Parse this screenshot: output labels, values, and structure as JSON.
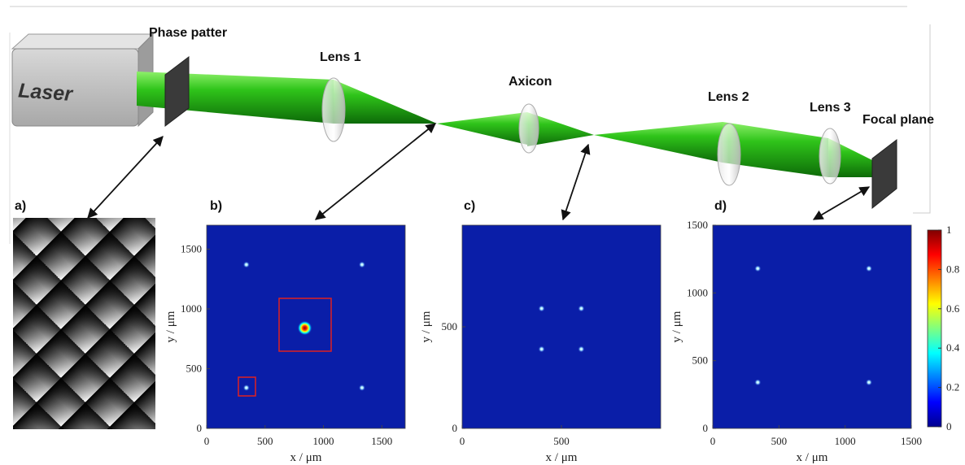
{
  "setup": {
    "laser": "Laser",
    "phase_pattern": "Phase patter",
    "lens1": "Lens 1",
    "axicon": "Axicon",
    "lens2": "Lens 2",
    "lens3": "Lens 3",
    "focal_plane": "Focal plane"
  },
  "panels": [
    {
      "label": "a)"
    },
    {
      "label": "b)",
      "xlabel": "x / μm",
      "ylabel": "y / μm",
      "xlim": [
        0,
        1700
      ],
      "ylim": [
        0,
        1700
      ],
      "xticks": [
        0,
        500,
        1000,
        1500
      ],
      "yticks": [
        0,
        500,
        1000,
        1500
      ],
      "spots": [
        {
          "x": 340,
          "y": 1370
        },
        {
          "x": 1330,
          "y": 1370
        },
        {
          "x": 340,
          "y": 340
        },
        {
          "x": 1330,
          "y": 340
        },
        {
          "x": 840,
          "y": 840
        }
      ]
    },
    {
      "label": "c)",
      "xlabel": "x / μm",
      "ylabel": "y / μm",
      "xlim": [
        0,
        1000
      ],
      "ylim": [
        0,
        1000
      ],
      "xticks": [
        0,
        500
      ],
      "yticks": [
        0,
        500
      ],
      "spots": [
        {
          "x": 400,
          "y": 590
        },
        {
          "x": 600,
          "y": 590
        },
        {
          "x": 400,
          "y": 390
        },
        {
          "x": 600,
          "y": 390
        }
      ]
    },
    {
      "label": "d)",
      "xlabel": "x / μm",
      "ylabel": "y / μm",
      "xlim": [
        0,
        1500
      ],
      "ylim": [
        0,
        1500
      ],
      "xticks": [
        0,
        500,
        1000,
        1500
      ],
      "yticks": [
        0,
        500,
        1000,
        1500
      ],
      "spots": [
        {
          "x": 340,
          "y": 1180
        },
        {
          "x": 1180,
          "y": 1180
        },
        {
          "x": 340,
          "y": 340
        },
        {
          "x": 1180,
          "y": 340
        }
      ]
    }
  ],
  "colorbar": {
    "lim": [
      0,
      1
    ],
    "ticks": [
      0,
      0.2,
      0.4,
      0.6,
      0.8,
      1
    ]
  }
}
